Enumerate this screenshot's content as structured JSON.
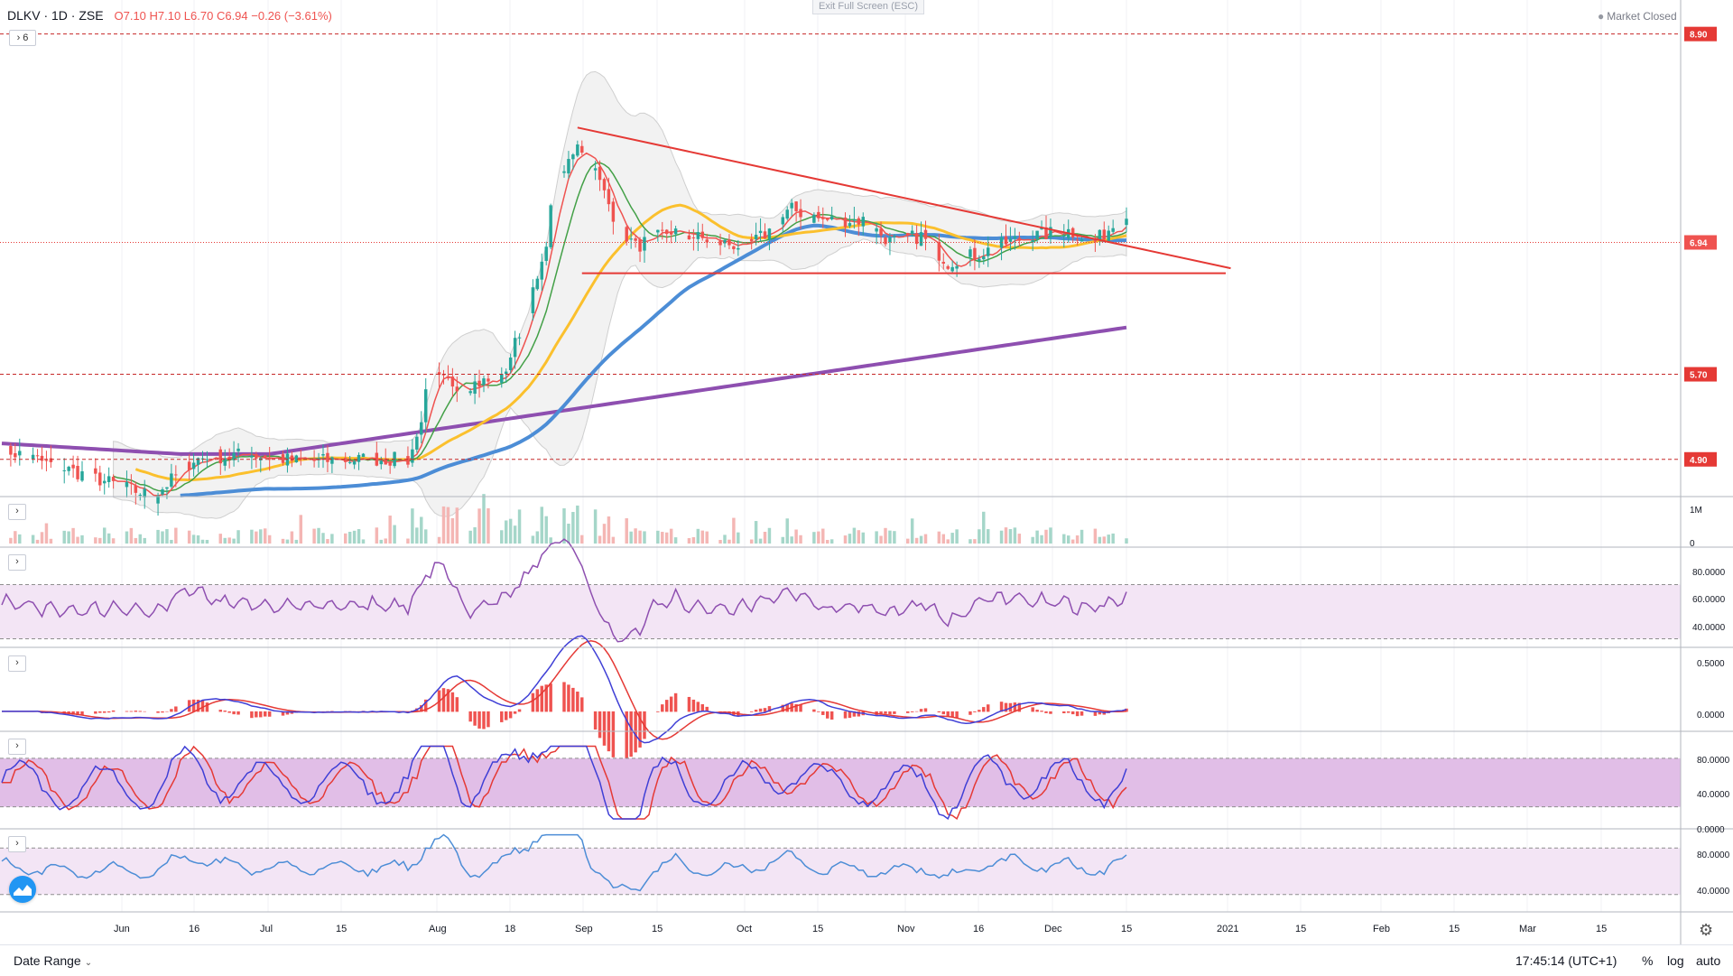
{
  "header": {
    "symbol": "DLKV · 1D · ZSE",
    "ohlc": "O7.10 H7.10 L6.70 C6.94 −0.26 (−3.61%)",
    "indicator_count": "6",
    "exit_fullscreen": "Exit Full Screen (ESC)",
    "market_status": "Market Closed"
  },
  "bottom_bar": {
    "date_range": "Date Range",
    "time": "17:45:14 (UTC+1)",
    "percent": "%",
    "log": "log",
    "auto": "auto"
  },
  "colors": {
    "up": "#26a69a",
    "down": "#ef5350",
    "ma_green": "#43a047",
    "ma_yellow": "#fbc02d",
    "ma_blue": "#4c8dd6",
    "ma_purple": "#8e4fb0",
    "trendline": "#e53935"
  },
  "chart_data": {
    "type": "candlestick",
    "title": "DLKV · 1D · ZSE",
    "y_range": [
      4.55,
      9.05
    ],
    "x_labels": [
      "Jun",
      "16",
      "Jul",
      "15",
      "Aug",
      "18",
      "Sep",
      "15",
      "Oct",
      "15",
      "Nov",
      "16",
      "Dec",
      "15",
      "2021",
      "15",
      "Feb",
      "15",
      "Mar",
      "15"
    ],
    "horizontal_levels": [
      {
        "label": "8.90",
        "value": 8.9
      },
      {
        "label": "5.70",
        "value": 5.7
      },
      {
        "label": "4.90",
        "value": 4.9
      }
    ],
    "last_price_label": "6.94",
    "last_price": 6.94,
    "support_level": 6.65,
    "trendline": {
      "from_day": 129,
      "from_value": 8.02,
      "to_day": 243,
      "to_value": 6.85
    },
    "candles": [],
    "volume": {
      "axis_labels": [
        "1M",
        "0"
      ]
    },
    "rsi": {
      "axis_labels": [
        "80.0000",
        "60.0000",
        "40.0000"
      ],
      "upper": 70,
      "lower": 30
    },
    "macd": {
      "axis_labels": [
        "0.5000",
        "0.0000"
      ]
    },
    "stoch": {
      "axis_labels": [
        "80.0000",
        "40.0000",
        "0.0000"
      ],
      "upper": 80,
      "lower": 20
    },
    "osc": {
      "axis_labels": [
        "80.0000",
        "40.0000"
      ],
      "upper": 80,
      "lower": 20
    },
    "guide_points": [
      [
        0,
        5.0
      ],
      [
        34,
        4.55
      ],
      [
        43,
        4.9
      ],
      [
        55,
        4.95
      ],
      [
        67,
        4.88
      ],
      [
        80,
        4.9
      ],
      [
        91,
        4.9
      ],
      [
        93,
        5.1
      ],
      [
        95,
        5.5
      ],
      [
        97,
        5.65
      ],
      [
        103,
        5.6
      ],
      [
        112,
        5.65
      ],
      [
        116,
        6.1
      ],
      [
        121,
        6.7
      ],
      [
        124,
        7.5
      ],
      [
        126,
        7.6
      ],
      [
        129,
        7.9
      ],
      [
        133,
        7.6
      ],
      [
        138,
        7.1
      ],
      [
        142,
        6.9
      ],
      [
        150,
        7.05
      ],
      [
        159,
        6.95
      ],
      [
        167,
        6.9
      ],
      [
        172,
        7.05
      ],
      [
        177,
        7.25
      ],
      [
        184,
        7.15
      ],
      [
        193,
        7.15
      ],
      [
        199,
        6.95
      ],
      [
        206,
        7.0
      ],
      [
        212,
        6.75
      ],
      [
        220,
        6.85
      ],
      [
        226,
        6.95
      ],
      [
        231,
        7.0
      ],
      [
        239,
        7.05
      ],
      [
        245,
        6.95
      ],
      [
        249,
        7.1
      ],
      [
        253,
        7.2
      ],
      [
        257,
        6.95
      ]
    ]
  }
}
